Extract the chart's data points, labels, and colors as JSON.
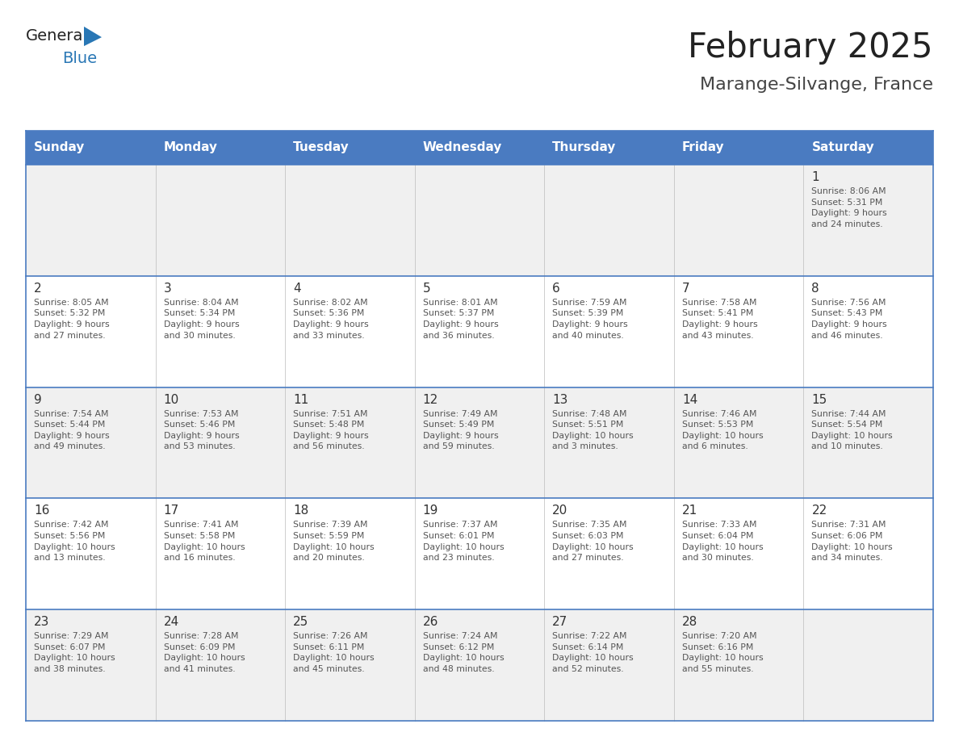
{
  "title": "February 2025",
  "subtitle": "Marange-Silvange, France",
  "header_bg": "#4a7bc1",
  "header_text": "#FFFFFF",
  "row_bg_light": "#F0F0F0",
  "row_bg_white": "#FFFFFF",
  "border_color": "#4a7bc1",
  "cell_border_color": "#CCCCCC",
  "day_names": [
    "Sunday",
    "Monday",
    "Tuesday",
    "Wednesday",
    "Thursday",
    "Friday",
    "Saturday"
  ],
  "title_color": "#222222",
  "subtitle_color": "#444444",
  "day_number_color": "#333333",
  "info_color": "#555555",
  "logo_black": "#222222",
  "logo_blue": "#2977B5",
  "weeks": [
    [
      {
        "day": 0,
        "info": ""
      },
      {
        "day": 0,
        "info": ""
      },
      {
        "day": 0,
        "info": ""
      },
      {
        "day": 0,
        "info": ""
      },
      {
        "day": 0,
        "info": ""
      },
      {
        "day": 0,
        "info": ""
      },
      {
        "day": 1,
        "info": "Sunrise: 8:06 AM\nSunset: 5:31 PM\nDaylight: 9 hours\nand 24 minutes."
      }
    ],
    [
      {
        "day": 2,
        "info": "Sunrise: 8:05 AM\nSunset: 5:32 PM\nDaylight: 9 hours\nand 27 minutes."
      },
      {
        "day": 3,
        "info": "Sunrise: 8:04 AM\nSunset: 5:34 PM\nDaylight: 9 hours\nand 30 minutes."
      },
      {
        "day": 4,
        "info": "Sunrise: 8:02 AM\nSunset: 5:36 PM\nDaylight: 9 hours\nand 33 minutes."
      },
      {
        "day": 5,
        "info": "Sunrise: 8:01 AM\nSunset: 5:37 PM\nDaylight: 9 hours\nand 36 minutes."
      },
      {
        "day": 6,
        "info": "Sunrise: 7:59 AM\nSunset: 5:39 PM\nDaylight: 9 hours\nand 40 minutes."
      },
      {
        "day": 7,
        "info": "Sunrise: 7:58 AM\nSunset: 5:41 PM\nDaylight: 9 hours\nand 43 minutes."
      },
      {
        "day": 8,
        "info": "Sunrise: 7:56 AM\nSunset: 5:43 PM\nDaylight: 9 hours\nand 46 minutes."
      }
    ],
    [
      {
        "day": 9,
        "info": "Sunrise: 7:54 AM\nSunset: 5:44 PM\nDaylight: 9 hours\nand 49 minutes."
      },
      {
        "day": 10,
        "info": "Sunrise: 7:53 AM\nSunset: 5:46 PM\nDaylight: 9 hours\nand 53 minutes."
      },
      {
        "day": 11,
        "info": "Sunrise: 7:51 AM\nSunset: 5:48 PM\nDaylight: 9 hours\nand 56 minutes."
      },
      {
        "day": 12,
        "info": "Sunrise: 7:49 AM\nSunset: 5:49 PM\nDaylight: 9 hours\nand 59 minutes."
      },
      {
        "day": 13,
        "info": "Sunrise: 7:48 AM\nSunset: 5:51 PM\nDaylight: 10 hours\nand 3 minutes."
      },
      {
        "day": 14,
        "info": "Sunrise: 7:46 AM\nSunset: 5:53 PM\nDaylight: 10 hours\nand 6 minutes."
      },
      {
        "day": 15,
        "info": "Sunrise: 7:44 AM\nSunset: 5:54 PM\nDaylight: 10 hours\nand 10 minutes."
      }
    ],
    [
      {
        "day": 16,
        "info": "Sunrise: 7:42 AM\nSunset: 5:56 PM\nDaylight: 10 hours\nand 13 minutes."
      },
      {
        "day": 17,
        "info": "Sunrise: 7:41 AM\nSunset: 5:58 PM\nDaylight: 10 hours\nand 16 minutes."
      },
      {
        "day": 18,
        "info": "Sunrise: 7:39 AM\nSunset: 5:59 PM\nDaylight: 10 hours\nand 20 minutes."
      },
      {
        "day": 19,
        "info": "Sunrise: 7:37 AM\nSunset: 6:01 PM\nDaylight: 10 hours\nand 23 minutes."
      },
      {
        "day": 20,
        "info": "Sunrise: 7:35 AM\nSunset: 6:03 PM\nDaylight: 10 hours\nand 27 minutes."
      },
      {
        "day": 21,
        "info": "Sunrise: 7:33 AM\nSunset: 6:04 PM\nDaylight: 10 hours\nand 30 minutes."
      },
      {
        "day": 22,
        "info": "Sunrise: 7:31 AM\nSunset: 6:06 PM\nDaylight: 10 hours\nand 34 minutes."
      }
    ],
    [
      {
        "day": 23,
        "info": "Sunrise: 7:29 AM\nSunset: 6:07 PM\nDaylight: 10 hours\nand 38 minutes."
      },
      {
        "day": 24,
        "info": "Sunrise: 7:28 AM\nSunset: 6:09 PM\nDaylight: 10 hours\nand 41 minutes."
      },
      {
        "day": 25,
        "info": "Sunrise: 7:26 AM\nSunset: 6:11 PM\nDaylight: 10 hours\nand 45 minutes."
      },
      {
        "day": 26,
        "info": "Sunrise: 7:24 AM\nSunset: 6:12 PM\nDaylight: 10 hours\nand 48 minutes."
      },
      {
        "day": 27,
        "info": "Sunrise: 7:22 AM\nSunset: 6:14 PM\nDaylight: 10 hours\nand 52 minutes."
      },
      {
        "day": 28,
        "info": "Sunrise: 7:20 AM\nSunset: 6:16 PM\nDaylight: 10 hours\nand 55 minutes."
      },
      {
        "day": 0,
        "info": ""
      }
    ]
  ]
}
